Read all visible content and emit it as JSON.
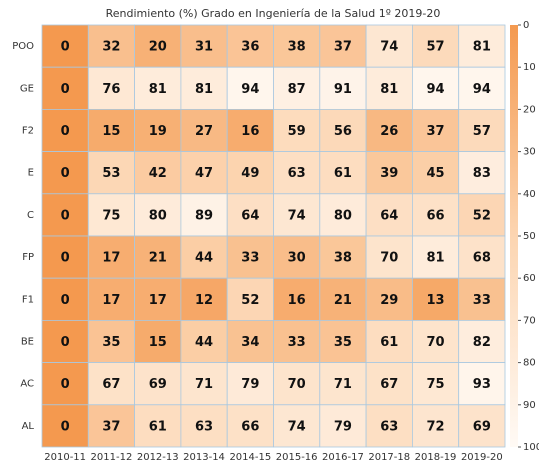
{
  "chart_data": {
    "type": "heatmap",
    "title": "Rendimiento (%) Grado en Ingeniería de la Salud 1º 2019-20",
    "rows": [
      "POO",
      "GE",
      "F2",
      "E",
      "C",
      "FP",
      "F1",
      "BE",
      "AC",
      "AL"
    ],
    "columns": [
      "2010-11",
      "2011-12",
      "2012-13",
      "2013-14",
      "2014-15",
      "2015-16",
      "2016-17",
      "2017-18",
      "2018-19",
      "2019-20"
    ],
    "values": [
      [
        0,
        32,
        20,
        31,
        36,
        38,
        37,
        74,
        57,
        81
      ],
      [
        0,
        76,
        81,
        81,
        94,
        87,
        91,
        81,
        94,
        94
      ],
      [
        0,
        15,
        19,
        27,
        16,
        59,
        56,
        26,
        37,
        57
      ],
      [
        0,
        53,
        42,
        47,
        49,
        63,
        61,
        39,
        45,
        83
      ],
      [
        0,
        75,
        80,
        89,
        64,
        74,
        80,
        64,
        66,
        52
      ],
      [
        0,
        17,
        21,
        44,
        33,
        30,
        38,
        70,
        81,
        68
      ],
      [
        0,
        17,
        17,
        12,
        52,
        16,
        21,
        29,
        13,
        33
      ],
      [
        0,
        35,
        15,
        44,
        34,
        33,
        35,
        61,
        70,
        82
      ],
      [
        0,
        67,
        69,
        71,
        79,
        70,
        71,
        67,
        75,
        93
      ],
      [
        0,
        37,
        61,
        63,
        66,
        74,
        79,
        63,
        72,
        69
      ]
    ],
    "vlim": [
      0,
      100
    ],
    "colorbar_ticks": [
      0,
      10,
      20,
      30,
      40,
      50,
      60,
      70,
      80,
      90,
      100
    ],
    "colormap": [
      "#f4994f",
      "#fcd5b1",
      "#fffaf5"
    ],
    "grid_color": "#a9c8e0"
  }
}
